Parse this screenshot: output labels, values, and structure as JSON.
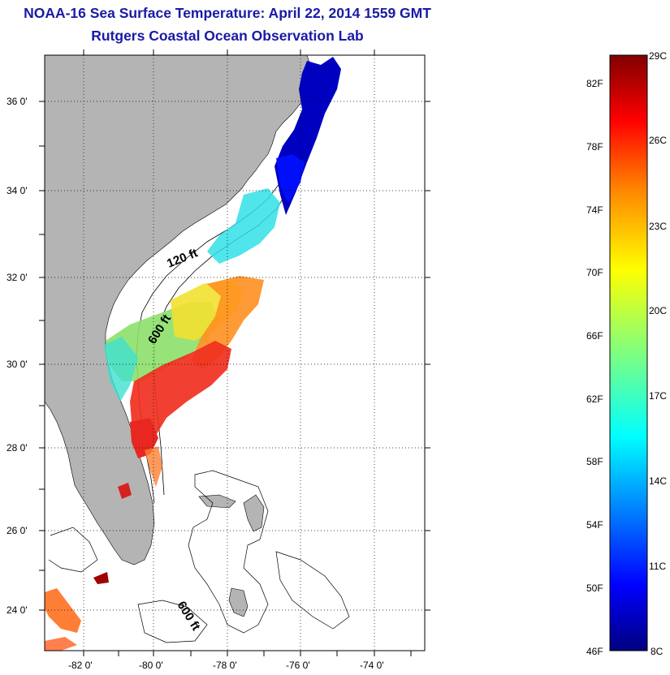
{
  "title": {
    "line1": "NOAA-16 Sea Surface Temperature:  April 22, 2014 1559 GMT",
    "line2": "Rutgers Coastal Ocean Observation Lab"
  },
  "map": {
    "lat_labels": [
      "36 0'",
      "34 0'",
      "32 0'",
      "30 0'",
      "28 0'",
      "26 0'",
      "24 0'"
    ],
    "lon_labels": [
      "-82 0'",
      "-80 0'",
      "-78 0'",
      "-76 0'",
      "-74 0'"
    ],
    "isobath_labels": [
      "120 ft",
      "600 ft",
      "600 ft"
    ],
    "land_color": "#b4b4b4",
    "grid": "dotted"
  },
  "colorbar": {
    "f_labels": [
      "82F",
      "78F",
      "74F",
      "70F",
      "66F",
      "62F",
      "58F",
      "54F",
      "50F",
      "46F"
    ],
    "c_labels": [
      "29C",
      "26C",
      "23C",
      "20C",
      "17C",
      "14C",
      "11C",
      "8C"
    ],
    "colormap": "jet"
  }
}
